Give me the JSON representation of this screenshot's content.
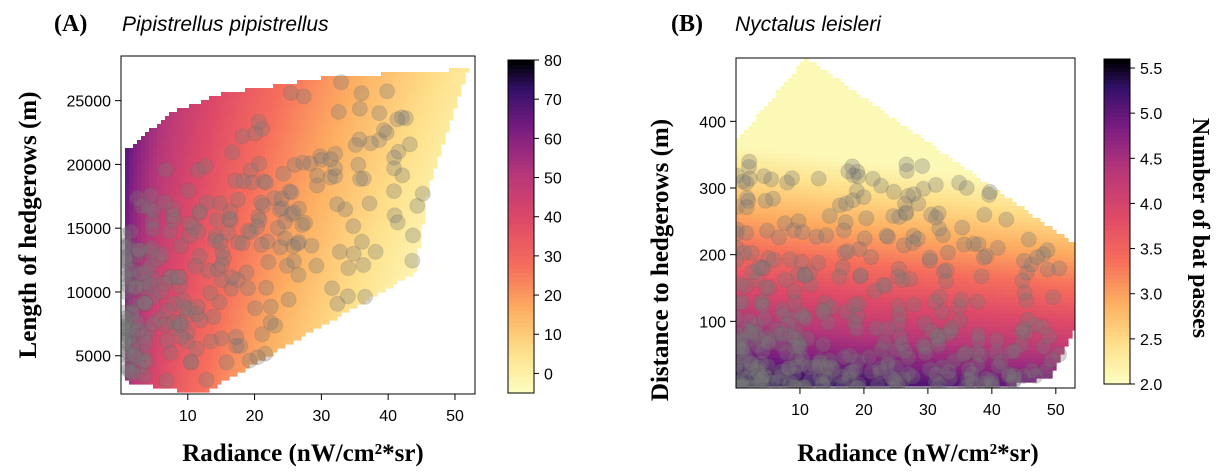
{
  "chart_data": [
    {
      "type": "heatmap",
      "panel_label": "(A)",
      "title": "Pipistrellus pipistrellus",
      "xlabel": "Radiance (nW/cm²*sr)",
      "ylabel": "Length of hedgerows (m)",
      "xlim": [
        0,
        53
      ],
      "ylim": [
        2000,
        28500
      ],
      "x_ticks": [
        10,
        20,
        30,
        40,
        50
      ],
      "y_ticks": [
        5000,
        10000,
        15000,
        20000,
        25000
      ],
      "colorbar": {
        "min": -5,
        "max": 80,
        "ticks": [
          0,
          10,
          20,
          30,
          40,
          50,
          60,
          70,
          80
        ],
        "label": ""
      },
      "hull": [
        [
          0.5,
          3000
        ],
        [
          0.5,
          21000
        ],
        [
          8,
          24200
        ],
        [
          15,
          25500
        ],
        [
          30,
          26800
        ],
        [
          52,
          27500
        ],
        [
          46,
          18000
        ],
        [
          44,
          11500
        ],
        [
          12,
          2000
        ]
      ],
      "surface_note": "predicted bat passes peak at low radiance / high hedgerow length and decline toward high radiance",
      "points_count_approx": 280
    },
    {
      "type": "heatmap",
      "panel_label": "(B)",
      "title": "Nyctalus leisleri",
      "xlabel": "Radiance (nW/cm²*sr)",
      "ylabel": "Distance to hedgerows (m)",
      "xlim": [
        0,
        53
      ],
      "ylim": [
        0,
        495
      ],
      "x_ticks": [
        10,
        20,
        30,
        40,
        50
      ],
      "y_ticks": [
        100,
        200,
        300,
        400
      ],
      "colorbar": {
        "min": 2.0,
        "max": 5.6,
        "ticks": [
          2.0,
          2.5,
          3.0,
          3.5,
          4.0,
          4.5,
          5.0,
          5.5
        ],
        "label": "Number of bat passes"
      },
      "hull": [
        [
          0,
          0
        ],
        [
          0,
          370
        ],
        [
          11,
          495
        ],
        [
          53,
          215
        ],
        [
          53,
          90
        ],
        [
          49,
          15
        ],
        [
          40,
          0
        ]
      ],
      "surface_note": "predicted bat passes highest near hedgerows (low distance) and decrease with distance",
      "points_count_approx": 380
    }
  ]
}
